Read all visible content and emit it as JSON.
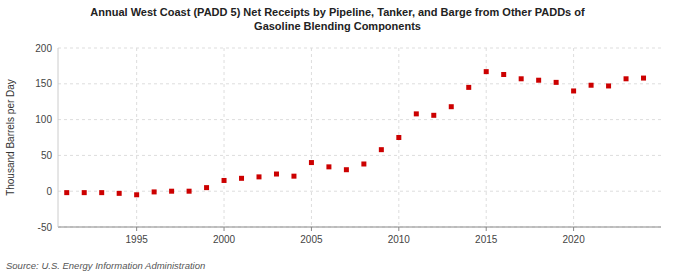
{
  "chart_data": {
    "type": "scatter",
    "title": "Annual West Coast (PADD 5) Net Receipts by Pipeline, Tanker, and Barge from Other PADDs of\nGasoline Blending Components",
    "y_label": "Thousand Barrels per Day",
    "source": "Source: U.S. Energy Information Administration",
    "x": [
      1991,
      1992,
      1993,
      1994,
      1995,
      1996,
      1997,
      1998,
      1999,
      2000,
      2001,
      2002,
      2003,
      2004,
      2005,
      2006,
      2007,
      2008,
      2009,
      2010,
      2011,
      2012,
      2013,
      2014,
      2015,
      2016,
      2017,
      2018,
      2019,
      2020,
      2021,
      2022,
      2023,
      2024
    ],
    "values": [
      -2,
      -2,
      -2,
      -3,
      -5,
      -1,
      0,
      0,
      5,
      15,
      18,
      20,
      24,
      21,
      40,
      34,
      30,
      38,
      58,
      75,
      108,
      106,
      118,
      145,
      167,
      163,
      157,
      155,
      152,
      140,
      148,
      147,
      157,
      158
    ],
    "color": "#cc0000",
    "marker": "square",
    "xlim": [
      1990.5,
      2025.0
    ],
    "xticks": [
      1995,
      2000,
      2005,
      2010,
      2015,
      2020
    ],
    "ylim": [
      -50,
      200
    ],
    "yticks": [
      -50,
      0,
      50,
      100,
      150,
      200
    ],
    "grid": true
  }
}
